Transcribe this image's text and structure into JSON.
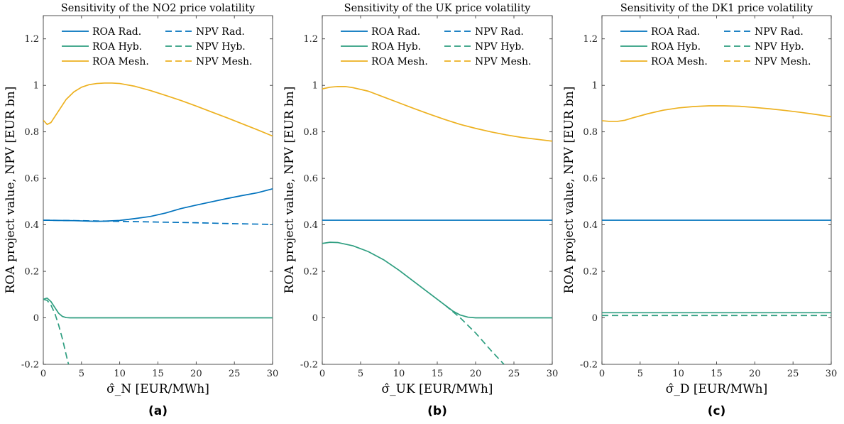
{
  "colors": {
    "rad": "#0072BD",
    "hyb": "#2E9E80",
    "mesh": "#EDB120"
  },
  "legend": [
    {
      "label": "ROA Rad.",
      "color": "#0072BD",
      "dash": false
    },
    {
      "label": "NPV Rad.",
      "color": "#0072BD",
      "dash": true
    },
    {
      "label": "ROA Hyb.",
      "color": "#2E9E80",
      "dash": false
    },
    {
      "label": "NPV Hyb.",
      "color": "#2E9E80",
      "dash": true
    },
    {
      "label": "ROA Mesh.",
      "color": "#EDB120",
      "dash": false
    },
    {
      "label": "NPV Mesh.",
      "color": "#EDB120",
      "dash": true
    }
  ],
  "chart_data": [
    {
      "type": "line",
      "title": "Sensitivity of the NO2 price volatility",
      "subfigure": "(a)",
      "xlabel": "σ̂_N [EUR/MWh]",
      "ylabel": "ROA project value, NPV [EUR bn]",
      "xlim": [
        0,
        30
      ],
      "ylim": [
        -0.2,
        1.3
      ],
      "xticks": [
        0,
        5,
        10,
        15,
        20,
        25,
        30
      ],
      "yticks": [
        -0.2,
        0,
        0.2,
        0.4,
        0.6,
        0.8,
        1,
        1.2
      ],
      "series": [
        {
          "name": "ROA Rad.",
          "color": "#0072BD",
          "dash": false,
          "x": [
            0,
            2,
            4,
            6,
            7,
            8,
            10,
            12,
            14,
            16,
            18,
            20,
            22,
            24,
            26,
            28,
            30
          ],
          "y": [
            0.42,
            0.419,
            0.418,
            0.416,
            0.415,
            0.416,
            0.419,
            0.427,
            0.436,
            0.451,
            0.47,
            0.485,
            0.499,
            0.513,
            0.526,
            0.538,
            0.555
          ]
        },
        {
          "name": "NPV Rad.",
          "color": "#0072BD",
          "dash": true,
          "x": [
            0,
            5,
            10,
            15,
            20,
            25,
            30
          ],
          "y": [
            0.42,
            0.418,
            0.415,
            0.412,
            0.409,
            0.405,
            0.402
          ]
        },
        {
          "name": "ROA Hyb.",
          "color": "#2E9E80",
          "dash": false,
          "x": [
            0,
            0.5,
            1,
            1.5,
            2,
            2.5,
            3,
            3.5,
            4,
            5,
            10,
            15,
            20,
            25,
            30
          ],
          "y": [
            0.08,
            0.085,
            0.07,
            0.045,
            0.02,
            0.006,
            0.001,
            0,
            0,
            0,
            0,
            0,
            0,
            0,
            0
          ]
        },
        {
          "name": "NPV Hyb.",
          "color": "#2E9E80",
          "dash": true,
          "x": [
            0,
            0.5,
            1,
            1.5,
            2,
            2.5,
            3,
            3.3
          ],
          "y": [
            0.08,
            0.075,
            0.055,
            0.02,
            -0.03,
            -0.09,
            -0.16,
            -0.2
          ]
        },
        {
          "name": "ROA Mesh.",
          "color": "#EDB120",
          "dash": false,
          "x": [
            0,
            0.5,
            1,
            2,
            3,
            4,
            5,
            6,
            7,
            8,
            9,
            10,
            12,
            14,
            16,
            18,
            20,
            22,
            24,
            26,
            28,
            30
          ],
          "y": [
            0.85,
            0.832,
            0.84,
            0.89,
            0.94,
            0.972,
            0.992,
            1.003,
            1.008,
            1.01,
            1.01,
            1.008,
            0.996,
            0.978,
            0.957,
            0.935,
            0.911,
            0.886,
            0.861,
            0.835,
            0.809,
            0.782
          ]
        }
      ]
    },
    {
      "type": "line",
      "title": "Sensitivity of the UK price volatility",
      "subfigure": "(b)",
      "xlabel": "σ̂_UK [EUR/MWh]",
      "ylabel": "ROA project value, NPV [EUR bn]",
      "xlim": [
        0,
        30
      ],
      "ylim": [
        -0.2,
        1.3
      ],
      "xticks": [
        0,
        5,
        10,
        15,
        20,
        25,
        30
      ],
      "yticks": [
        -0.2,
        0,
        0.2,
        0.4,
        0.6,
        0.8,
        1,
        1.2
      ],
      "series": [
        {
          "name": "ROA Rad.",
          "color": "#0072BD",
          "dash": false,
          "x": [
            0,
            30
          ],
          "y": [
            0.42,
            0.42
          ]
        },
        {
          "name": "ROA Hyb.",
          "color": "#2E9E80",
          "dash": false,
          "x": [
            0,
            1,
            2,
            4,
            6,
            8,
            10,
            12,
            14,
            16,
            17,
            18,
            19,
            20,
            22,
            25,
            30
          ],
          "y": [
            0.32,
            0.325,
            0.324,
            0.31,
            0.285,
            0.25,
            0.205,
            0.155,
            0.105,
            0.055,
            0.03,
            0.012,
            0.003,
            0,
            0,
            0,
            0
          ]
        },
        {
          "name": "NPV Hyb.",
          "color": "#2E9E80",
          "dash": true,
          "x": [
            16,
            18,
            20,
            22,
            23.7
          ],
          "y": [
            0.055,
            0.0,
            -0.065,
            -0.14,
            -0.2
          ]
        },
        {
          "name": "ROA Mesh.",
          "color": "#EDB120",
          "dash": false,
          "x": [
            0,
            1,
            2,
            3,
            4,
            6,
            8,
            10,
            12,
            14,
            16,
            18,
            20,
            22,
            24,
            26,
            28,
            30
          ],
          "y": [
            0.985,
            0.992,
            0.995,
            0.995,
            0.99,
            0.975,
            0.95,
            0.925,
            0.9,
            0.876,
            0.853,
            0.832,
            0.815,
            0.8,
            0.787,
            0.776,
            0.768,
            0.76
          ]
        }
      ]
    },
    {
      "type": "line",
      "title": "Sensitivity of the DK1 price volatility",
      "subfigure": "(c)",
      "xlabel": "σ̂_D [EUR/MWh]",
      "ylabel": "ROA project value, NPV [EUR bn]",
      "xlim": [
        0,
        30
      ],
      "ylim": [
        -0.2,
        1.3
      ],
      "xticks": [
        0,
        5,
        10,
        15,
        20,
        25,
        30
      ],
      "yticks": [
        -0.2,
        0,
        0.2,
        0.4,
        0.6,
        0.8,
        1,
        1.2
      ],
      "series": [
        {
          "name": "ROA Rad.",
          "color": "#0072BD",
          "dash": false,
          "x": [
            0,
            30
          ],
          "y": [
            0.42,
            0.42
          ]
        },
        {
          "name": "ROA Hyb.",
          "color": "#2E9E80",
          "dash": false,
          "x": [
            0,
            30
          ],
          "y": [
            0.022,
            0.022
          ]
        },
        {
          "name": "NPV Hyb.",
          "color": "#2E9E80",
          "dash": true,
          "x": [
            0,
            30
          ],
          "y": [
            0.01,
            0.01
          ]
        },
        {
          "name": "ROA Mesh.",
          "color": "#EDB120",
          "dash": false,
          "x": [
            0,
            1,
            2,
            3,
            4,
            6,
            8,
            10,
            12,
            14,
            16,
            18,
            20,
            22,
            24,
            26,
            28,
            30
          ],
          "y": [
            0.848,
            0.845,
            0.845,
            0.85,
            0.86,
            0.878,
            0.893,
            0.903,
            0.909,
            0.912,
            0.912,
            0.91,
            0.905,
            0.899,
            0.892,
            0.884,
            0.875,
            0.865
          ]
        }
      ]
    }
  ]
}
